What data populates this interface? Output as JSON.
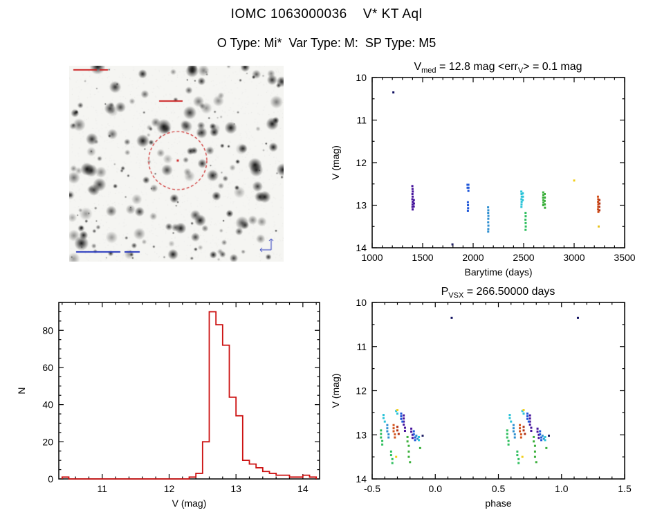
{
  "header": {
    "title": "IOMC 1063000036    V* KT Aql",
    "subtitle": "O Type: Mi*  Var Type: M:  SP Type: M5"
  },
  "finding_chart": {
    "overlay_circle_color": "#cc2222",
    "overlay_annotation_red": "#cc2222",
    "overlay_annotation_blue": "#2233bb"
  },
  "chart_data": [
    {
      "id": "lightcurve",
      "type": "scatter",
      "title_segments": [
        {
          "t": "V"
        },
        {
          "t": "med",
          "sub": true
        },
        {
          "t": " = 12.8 mag <err"
        },
        {
          "t": "V",
          "sub": true
        },
        {
          "t": "> = 0.1 mag"
        }
      ],
      "xlabel": "Barytime (days)",
      "ylabel": "V (mag)",
      "xlim": [
        1000,
        3500
      ],
      "ylim": [
        10,
        14
      ],
      "y_inverted": true,
      "xticks": {
        "values": [
          1000,
          1500,
          2000,
          2500,
          3000,
          3500
        ],
        "labels": [
          "1000",
          "1500",
          "2000",
          "2500",
          "3000",
          "3500"
        ]
      },
      "yticks": {
        "values": [
          10,
          11,
          12,
          13,
          14
        ],
        "labels": [
          "10",
          "11",
          "12",
          "13",
          "14"
        ]
      },
      "x_minor": 4,
      "y_minor": 1,
      "grid": false,
      "points": [
        [
          1210,
          10.35,
          "#101060"
        ],
        [
          1398,
          12.55,
          "#46149c"
        ],
        [
          1400,
          12.62,
          "#46149c"
        ],
        [
          1402,
          12.68,
          "#46149c"
        ],
        [
          1399,
          12.74,
          "#46149c"
        ],
        [
          1401,
          12.8,
          "#46149c"
        ],
        [
          1398,
          12.86,
          "#46149c"
        ],
        [
          1402,
          12.92,
          "#46149c"
        ],
        [
          1400,
          12.98,
          "#46149c"
        ],
        [
          1399,
          13.04,
          "#46149c"
        ],
        [
          1401,
          13.1,
          "#46149c"
        ],
        [
          1413,
          12.88,
          "#46149c"
        ],
        [
          1414,
          12.96,
          "#46149c"
        ],
        [
          1412,
          13.03,
          "#46149c"
        ],
        [
          1795,
          13.92,
          "#222266"
        ],
        [
          1944,
          12.52,
          "#2057d9"
        ],
        [
          1945,
          12.59,
          "#2057d9"
        ],
        [
          1953,
          12.52,
          "#2057d9"
        ],
        [
          1954,
          12.59,
          "#2057d9"
        ],
        [
          1953,
          12.66,
          "#2057d9"
        ],
        [
          1948,
          12.93,
          "#2057d9"
        ],
        [
          1949,
          13.0,
          "#2057d9"
        ],
        [
          1950,
          13.07,
          "#2057d9"
        ],
        [
          1948,
          13.13,
          "#2057d9"
        ],
        [
          2148,
          13.05,
          "#2e8fd0"
        ],
        [
          2150,
          13.12,
          "#2e8fd0"
        ],
        [
          2149,
          13.18,
          "#2e8fd0"
        ],
        [
          2151,
          13.25,
          "#2e8fd0"
        ],
        [
          2150,
          13.32,
          "#2e8fd0"
        ],
        [
          2149,
          13.4,
          "#2e8fd0"
        ],
        [
          2151,
          13.48,
          "#2e8fd0"
        ],
        [
          2150,
          13.56,
          "#2e8fd0"
        ],
        [
          2149,
          13.62,
          "#2e8fd0"
        ],
        [
          2477,
          12.68,
          "#29c3d8"
        ],
        [
          2479,
          12.74,
          "#29c3d8"
        ],
        [
          2481,
          12.8,
          "#29c3d8"
        ],
        [
          2478,
          12.86,
          "#29c3d8"
        ],
        [
          2480,
          12.92,
          "#29c3d8"
        ],
        [
          2479,
          12.98,
          "#29c3d8"
        ],
        [
          2478,
          13.04,
          "#29c3d8"
        ],
        [
          2492,
          12.72,
          "#29c3d8"
        ],
        [
          2493,
          12.8,
          "#29c3d8"
        ],
        [
          2491,
          12.88,
          "#29c3d8"
        ],
        [
          2519,
          13.18,
          "#2fbf5f"
        ],
        [
          2520,
          13.26,
          "#2fbf5f"
        ],
        [
          2518,
          13.34,
          "#2fbf5f"
        ],
        [
          2520,
          13.42,
          "#2fbf5f"
        ],
        [
          2521,
          13.5,
          "#2fbf5f"
        ],
        [
          2519,
          13.58,
          "#2fbf5f"
        ],
        [
          2694,
          12.7,
          "#3cb03c"
        ],
        [
          2695,
          12.76,
          "#3cb03c"
        ],
        [
          2693,
          12.82,
          "#3cb03c"
        ],
        [
          2695,
          12.88,
          "#3cb03c"
        ],
        [
          2696,
          12.94,
          "#3cb03c"
        ],
        [
          2694,
          13.0,
          "#3cb03c"
        ],
        [
          2709,
          12.74,
          "#3cb03c"
        ],
        [
          2710,
          12.82,
          "#3cb03c"
        ],
        [
          2708,
          12.9,
          "#3cb03c"
        ],
        [
          2710,
          12.98,
          "#3cb03c"
        ],
        [
          2711,
          13.06,
          "#3cb03c"
        ],
        [
          3000,
          12.42,
          "#f2cf1d"
        ],
        [
          3236,
          12.8,
          "#d4531c"
        ],
        [
          3238,
          12.86,
          "#d4531c"
        ],
        [
          3237,
          12.92,
          "#d4531c"
        ],
        [
          3239,
          12.98,
          "#d4531c"
        ],
        [
          3238,
          13.04,
          "#d4531c"
        ],
        [
          3236,
          13.1,
          "#d4531c"
        ],
        [
          3240,
          13.16,
          "#d4531c"
        ],
        [
          3250,
          12.88,
          "#b22e10"
        ],
        [
          3251,
          12.96,
          "#b22e10"
        ],
        [
          3249,
          13.04,
          "#b22e10"
        ],
        [
          3250,
          13.12,
          "#b22e10"
        ],
        [
          3243,
          13.5,
          "#e8c41f"
        ]
      ]
    },
    {
      "id": "phase",
      "type": "scatter",
      "title_segments": [
        {
          "t": "P"
        },
        {
          "t": "VSX",
          "sub": true
        },
        {
          "t": " = 266.50000 days"
        }
      ],
      "xlabel": "phase",
      "ylabel": "V (mag)",
      "xlim": [
        -0.5,
        1.5
      ],
      "ylim": [
        10,
        14
      ],
      "y_inverted": true,
      "xticks": {
        "values": [
          -0.5,
          0.0,
          0.5,
          1.0,
          1.5
        ],
        "labels": [
          "-0.5",
          "0.0",
          "0.5",
          "1.0",
          "1.5"
        ]
      },
      "yticks": {
        "values": [
          10,
          11,
          12,
          13,
          14
        ],
        "labels": [
          "10",
          "11",
          "12",
          "13",
          "14"
        ]
      },
      "x_minor": 4,
      "y_minor": 1,
      "grid": false,
      "cycle_offsets": [
        0,
        1
      ],
      "points": [
        [
          -0.25,
          12.56,
          "#46149c"
        ],
        [
          -0.25,
          12.63,
          "#46149c"
        ],
        [
          -0.25,
          12.7,
          "#46149c"
        ],
        [
          -0.25,
          12.77,
          "#46149c"
        ],
        [
          -0.24,
          12.84,
          "#46149c"
        ],
        [
          -0.24,
          12.91,
          "#46149c"
        ],
        [
          -0.19,
          12.86,
          "#46149c"
        ],
        [
          -0.19,
          12.93,
          "#46149c"
        ],
        [
          -0.18,
          13.0,
          "#46149c"
        ],
        [
          -0.18,
          13.07,
          "#46149c"
        ],
        [
          -0.27,
          12.52,
          "#2057d9"
        ],
        [
          -0.27,
          12.58,
          "#2057d9"
        ],
        [
          -0.27,
          12.64,
          "#2057d9"
        ],
        [
          -0.26,
          12.7,
          "#2057d9"
        ],
        [
          -0.17,
          12.92,
          "#2057d9"
        ],
        [
          -0.17,
          12.99,
          "#2057d9"
        ],
        [
          -0.16,
          13.06,
          "#2057d9"
        ],
        [
          -0.16,
          13.12,
          "#2057d9"
        ],
        [
          -0.38,
          12.78,
          "#2e8fd0"
        ],
        [
          -0.38,
          12.85,
          "#2e8fd0"
        ],
        [
          -0.38,
          12.92,
          "#2e8fd0"
        ],
        [
          -0.37,
          12.99,
          "#2e8fd0"
        ],
        [
          -0.37,
          13.06,
          "#2e8fd0"
        ],
        [
          -0.15,
          13.02,
          "#2e8fd0"
        ],
        [
          -0.14,
          13.09,
          "#2e8fd0"
        ],
        [
          -0.41,
          12.55,
          "#29c3d8"
        ],
        [
          -0.41,
          12.62,
          "#29c3d8"
        ],
        [
          -0.4,
          12.7,
          "#29c3d8"
        ],
        [
          -0.31,
          12.46,
          "#29c3d8"
        ],
        [
          -0.3,
          12.52,
          "#29c3d8"
        ],
        [
          -0.13,
          13.05,
          "#29c3d8"
        ],
        [
          -0.13,
          13.12,
          "#29c3d8"
        ],
        [
          -0.43,
          12.9,
          "#2fbf5f"
        ],
        [
          -0.43,
          12.98,
          "#2fbf5f"
        ],
        [
          -0.43,
          13.06,
          "#2fbf5f"
        ],
        [
          -0.42,
          13.14,
          "#2fbf5f"
        ],
        [
          -0.42,
          13.22,
          "#2fbf5f"
        ],
        [
          -0.35,
          13.38,
          "#2fbf5f"
        ],
        [
          -0.35,
          13.46,
          "#2fbf5f"
        ],
        [
          -0.34,
          13.55,
          "#2fbf5f"
        ],
        [
          -0.34,
          13.64,
          "#2fbf5f"
        ],
        [
          -0.22,
          13.05,
          "#3cb03c"
        ],
        [
          -0.22,
          13.15,
          "#3cb03c"
        ],
        [
          -0.21,
          13.25,
          "#3cb03c"
        ],
        [
          -0.21,
          13.38,
          "#3cb03c"
        ],
        [
          -0.21,
          13.5,
          "#3cb03c"
        ],
        [
          -0.2,
          13.62,
          "#3cb03c"
        ],
        [
          -0.12,
          13.3,
          "#3cb03c"
        ],
        [
          -0.33,
          12.78,
          "#d4531c"
        ],
        [
          -0.33,
          12.85,
          "#d4531c"
        ],
        [
          -0.33,
          12.92,
          "#d4531c"
        ],
        [
          -0.32,
          12.99,
          "#d4531c"
        ],
        [
          -0.32,
          13.06,
          "#d4531c"
        ],
        [
          -0.3,
          12.82,
          "#b22e10"
        ],
        [
          -0.3,
          12.9,
          "#b22e10"
        ],
        [
          -0.29,
          12.98,
          "#b22e10"
        ],
        [
          -0.3,
          12.44,
          "#f2cf1d"
        ],
        [
          -0.31,
          13.5,
          "#f2cf1d"
        ],
        [
          -0.1,
          13.02,
          "#222266"
        ],
        [
          0.13,
          10.35,
          "#101060"
        ]
      ]
    },
    {
      "id": "histogram",
      "type": "bar",
      "xlabel": "V (mag)",
      "ylabel": "N",
      "xlim": [
        10.35,
        14.25
      ],
      "ylim": [
        0,
        95
      ],
      "y_inverted": false,
      "xticks": {
        "values": [
          11,
          12,
          13,
          14
        ],
        "labels": [
          "11",
          "12",
          "13",
          "14"
        ]
      },
      "yticks": {
        "values": [
          0,
          20,
          40,
          60,
          80
        ],
        "labels": [
          "0",
          "20",
          "40",
          "60",
          "80"
        ]
      },
      "x_minor": 4,
      "y_minor": 3,
      "grid": false,
      "color": "#cc1111",
      "bin_start": 10.4,
      "bin_width": 0.1,
      "counts": [
        1,
        0,
        0,
        0,
        0,
        0,
        0,
        0,
        0,
        0,
        0,
        0,
        0,
        0,
        0,
        0,
        0,
        0,
        0,
        1,
        3,
        20,
        90,
        83,
        72,
        44,
        34,
        10,
        8,
        6,
        4,
        3,
        2,
        2,
        1,
        1,
        2,
        1
      ]
    }
  ]
}
